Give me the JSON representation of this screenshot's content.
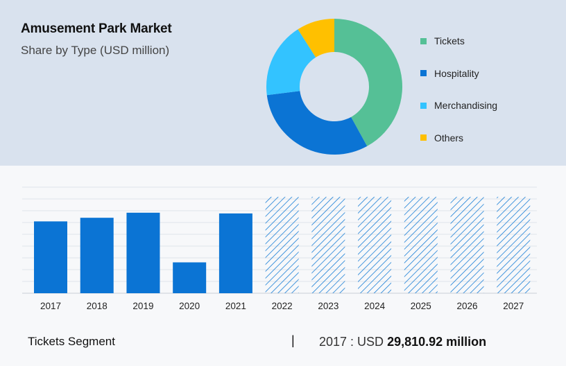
{
  "header": {
    "title": "Amusement Park Market",
    "subtitle": "Share by Type (USD million)"
  },
  "chart_data": [
    {
      "type": "pie",
      "variant": "donut",
      "categories": [
        "Tickets",
        "Hospitality",
        "Merchandising",
        "Others"
      ],
      "values": [
        42,
        31,
        18,
        9
      ],
      "colors": [
        "#55c096",
        "#0b74d4",
        "#33c3ff",
        "#ffc000"
      ],
      "legend_position": "right"
    },
    {
      "type": "bar",
      "categories": [
        "2017",
        "2018",
        "2019",
        "2020",
        "2021",
        "2022",
        "2023",
        "2024",
        "2025",
        "2026",
        "2027"
      ],
      "values": [
        29.8,
        31.3,
        33.4,
        12.8,
        33.1,
        40,
        40,
        40,
        40,
        40,
        40
      ],
      "forecast_from": "2022",
      "ylim": [
        0,
        44
      ],
      "grid": true,
      "bar_color": "#0b74d4",
      "forecast_color": "#1a7fd6"
    }
  ],
  "footer": {
    "segment_label": "Tickets Segment",
    "separator": "|",
    "year_label": "2017 : USD",
    "amount": "29,810.92 million"
  }
}
